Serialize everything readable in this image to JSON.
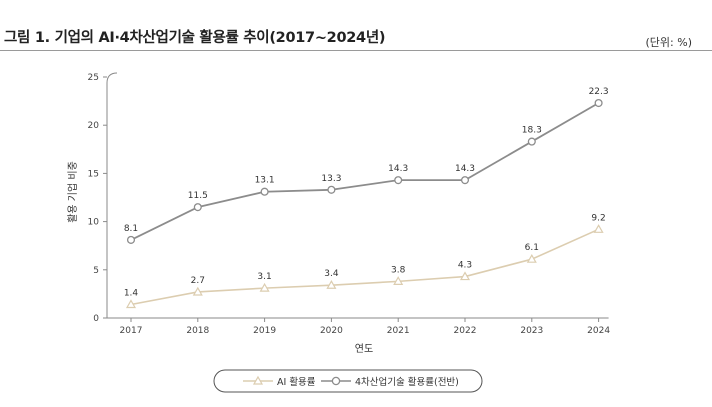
{
  "header": {
    "title": "그림 1. 기업의 AI·4차산업기술 활용률 추이(2017~2024년)",
    "unit": "(단위: %)"
  },
  "colors": {
    "ai": "#dccdb0",
    "tech": "#8c8c8c",
    "axis": "#8a8a8a"
  },
  "chart_data": {
    "type": "line",
    "categories": [
      "2017",
      "2018",
      "2019",
      "2020",
      "2021",
      "2022",
      "2023",
      "2024"
    ],
    "xlabel": "연도",
    "ylabel": "활용 기업 비중",
    "ylim": [
      0,
      25
    ],
    "yticks": [
      0,
      5,
      10,
      15,
      20,
      25
    ],
    "grid": false,
    "legend": "bottom",
    "series": [
      {
        "name": "AI 활용률",
        "marker": "triangle",
        "values": [
          1.4,
          2.7,
          3.1,
          3.4,
          3.8,
          4.3,
          6.1,
          9.2
        ],
        "labels": [
          "1.4",
          "2.7",
          "3.1",
          "3.4",
          "3.8",
          "4.3",
          "6.1",
          "9.2"
        ]
      },
      {
        "name": "4차산업기술 활용률(전반)",
        "marker": "circle",
        "values": [
          8.1,
          11.5,
          13.1,
          13.3,
          14.3,
          14.3,
          18.3,
          22.3
        ],
        "labels": [
          "8.1",
          "11.5",
          "13.1",
          "13.3",
          "14.3",
          "14.3",
          "18.3",
          "22.3"
        ]
      }
    ]
  }
}
